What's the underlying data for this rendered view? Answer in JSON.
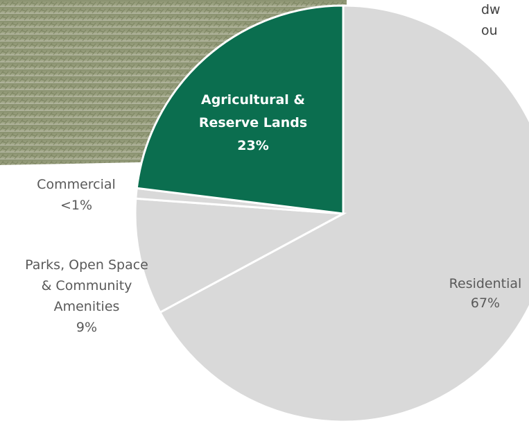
{
  "chart_data": {
    "type": "pie",
    "categories": [
      "Residential",
      "Parks, Open Space\n& Community\nAmenities",
      "Commercial",
      "Agricultural &\nReserve Lands"
    ],
    "values": [
      67,
      9,
      0.8,
      23
    ],
    "value_labels": [
      "67%",
      "9%",
      "<1%",
      "23%"
    ],
    "colors": [
      "#d9d9d9",
      "#d9d9d9",
      "#d9d9d9",
      "#0b6e4f"
    ],
    "annotations": [
      "dw",
      "ou"
    ]
  }
}
